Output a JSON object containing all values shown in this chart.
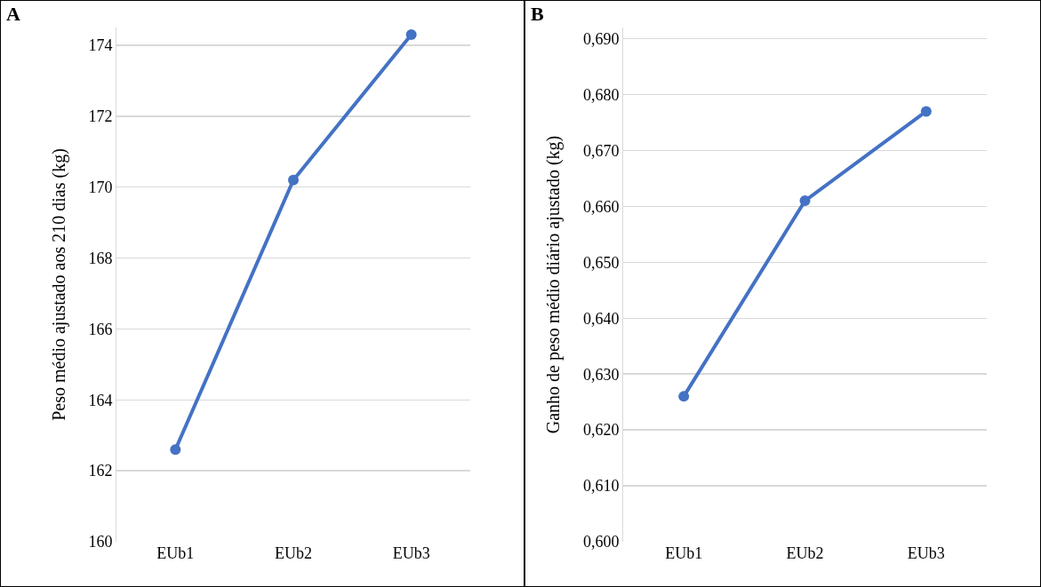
{
  "chart_data": [
    {
      "type": "line",
      "title": "A",
      "ylabel": "Peso médio ajustado aos 210 dias (kg)",
      "categories": [
        "EUb1",
        "EUb2",
        "EUb3"
      ],
      "values": [
        162.6,
        170.2,
        174.3
      ],
      "color": "#4472c4",
      "ylim": [
        160,
        174.5
      ],
      "yticks": [
        160,
        162,
        164,
        166,
        168,
        170,
        172,
        174
      ],
      "grid": "y",
      "marker": "circle"
    },
    {
      "type": "line",
      "title": "B",
      "ylabel": "Ganho de peso médio diário ajustado (kg)",
      "categories": [
        "EUb1",
        "EUb2",
        "EUb3"
      ],
      "values": [
        0.626,
        0.661,
        0.677
      ],
      "color": "#4472c4",
      "ylim": [
        0.6,
        0.692
      ],
      "yticks": [
        {
          "value": 0.6,
          "label": "0,600"
        },
        {
          "value": 0.61,
          "label": "0,610"
        },
        {
          "value": 0.62,
          "label": "0,620"
        },
        {
          "value": 0.63,
          "label": "0,630"
        },
        {
          "value": 0.64,
          "label": "0,640"
        },
        {
          "value": 0.65,
          "label": "0,650"
        },
        {
          "value": 0.66,
          "label": "0,660"
        },
        {
          "value": 0.67,
          "label": "0,670"
        },
        {
          "value": 0.68,
          "label": "0,680"
        },
        {
          "value": 0.69,
          "label": "0,690"
        }
      ],
      "grid": "y",
      "marker": "circle"
    }
  ]
}
